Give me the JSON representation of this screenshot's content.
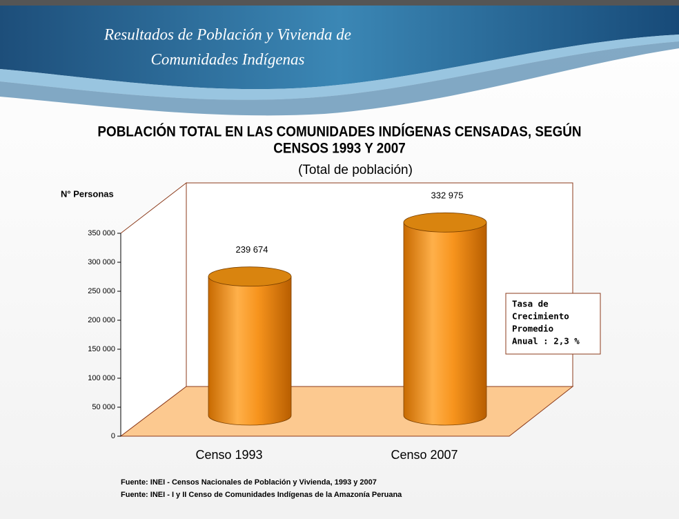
{
  "header": {
    "title_lines": [
      "Resultados de Población y Vivienda de",
      "Comunidades Indígenas"
    ]
  },
  "chart_data": {
    "type": "cylinder",
    "title_lines": [
      "POBLACIÓN TOTAL EN LAS COMUNIDADES INDÍGENAS CENSADAS, SEGÚN",
      "CENSOS 1993 Y 2007"
    ],
    "subtitle": "(Total de población)",
    "y_label": "N° Personas",
    "categories": [
      "Censo 1993",
      "Censo 2007"
    ],
    "values": [
      239674,
      332975
    ],
    "value_labels": [
      "239 674",
      "332 975"
    ],
    "color": "#f7941d",
    "ylim": [
      0,
      350000
    ],
    "yticks": [
      0,
      {
        "value": 50000,
        "label": "50 000"
      },
      {
        "value": 100000,
        "label": "100 000"
      },
      {
        "value": 150000,
        "label": "150 000"
      },
      {
        "value": 200000,
        "label": "200 000"
      },
      {
        "value": 250000,
        "label": "250 000"
      },
      {
        "value": 300000,
        "label": "300 000"
      },
      {
        "value": 350000,
        "label": "350 000"
      }
    ],
    "annotation_lines": [
      "Tasa de",
      "Crecimiento",
      "Promedio",
      "Anual : 2,3 %"
    ]
  },
  "sources": [
    "Fuente: INEI - Censos Nacionales  de Población y Vivienda,  1993 y 2007",
    "Fuente: INEI - I y II Censo de Comunidades Indígenas de la Amazonía Peruana"
  ]
}
